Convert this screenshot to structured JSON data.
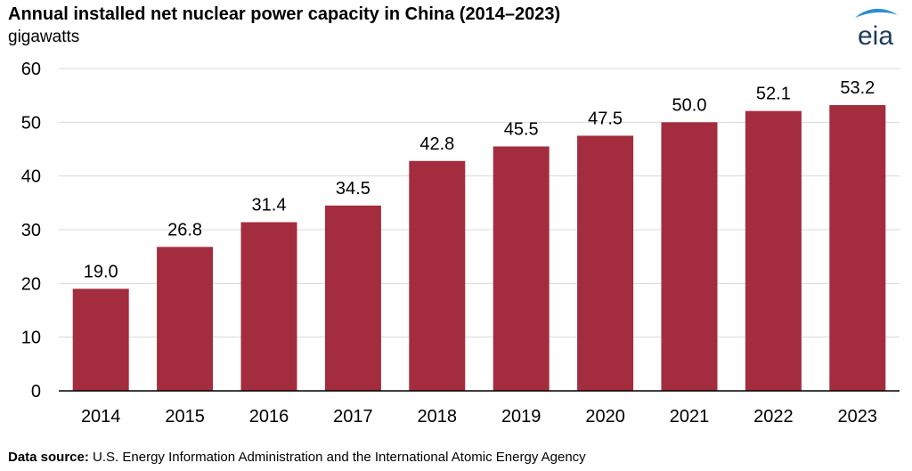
{
  "header": {
    "title": "Annual installed net nuclear power capacity in China (2014–2023)",
    "units": "gigawatts",
    "logo_text": "eia"
  },
  "footer": {
    "source_label": "Data source:",
    "source_text": "U.S. Energy Information Administration and the International Atomic Energy Agency"
  },
  "colors": {
    "bar": "#a32d3e",
    "grid": "#d9d9d9",
    "axis": "#000000",
    "logo_swoosh": "#2a8fd1",
    "logo_text": "#1f3b5c"
  },
  "chart_data": {
    "type": "bar",
    "title": "Annual installed net nuclear power capacity in China (2014–2023)",
    "ylabel": "gigawatts",
    "xlabel": "",
    "categories": [
      "2014",
      "2015",
      "2016",
      "2017",
      "2018",
      "2019",
      "2020",
      "2021",
      "2022",
      "2023"
    ],
    "values": [
      19.0,
      26.8,
      31.4,
      34.5,
      42.8,
      45.5,
      47.5,
      50.0,
      52.1,
      53.2
    ],
    "value_labels": [
      "19.0",
      "26.8",
      "31.4",
      "34.5",
      "42.8",
      "45.5",
      "47.5",
      "50.0",
      "52.1",
      "53.2"
    ],
    "ylim": [
      0,
      60
    ],
    "yticks": [
      "0",
      "10",
      "20",
      "30",
      "40",
      "50",
      "60"
    ],
    "grid": true,
    "legend": "none"
  }
}
